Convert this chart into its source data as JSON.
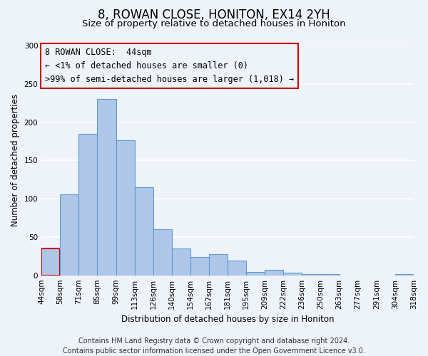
{
  "title": "8, ROWAN CLOSE, HONITON, EX14 2YH",
  "subtitle": "Size of property relative to detached houses in Honiton",
  "xlabel": "Distribution of detached houses by size in Honiton",
  "ylabel": "Number of detached properties",
  "bin_edges": [
    "44sqm",
    "58sqm",
    "71sqm",
    "85sqm",
    "99sqm",
    "113sqm",
    "126sqm",
    "140sqm",
    "154sqm",
    "167sqm",
    "181sqm",
    "195sqm",
    "209sqm",
    "222sqm",
    "236sqm",
    "250sqm",
    "263sqm",
    "277sqm",
    "291sqm",
    "304sqm",
    "318sqm"
  ],
  "bar_values": [
    35,
    106,
    185,
    230,
    176,
    115,
    60,
    35,
    24,
    28,
    19,
    4,
    7,
    3,
    2,
    2,
    0,
    0,
    0,
    2
  ],
  "bar_color": "#aec6e8",
  "bar_edge_color": "#5b9bd5",
  "highlight_bar_index": 0,
  "highlight_bar_edge_color": "#cc0000",
  "annotation_line1": "8 ROWAN CLOSE:  44sqm",
  "annotation_line2": "← <1% of detached houses are smaller (0)",
  "annotation_line3": ">99% of semi-detached houses are larger (1,018) →",
  "annotation_box_edge_color": "#cc0000",
  "ylim": [
    0,
    300
  ],
  "yticks": [
    0,
    50,
    100,
    150,
    200,
    250,
    300
  ],
  "footer_line1": "Contains HM Land Registry data © Crown copyright and database right 2024.",
  "footer_line2": "Contains public sector information licensed under the Open Government Licence v3.0.",
  "background_color": "#eef2f9",
  "grid_color": "#ffffff",
  "title_fontsize": 12,
  "subtitle_fontsize": 9.5,
  "axis_label_fontsize": 8.5,
  "tick_fontsize": 7.5,
  "annotation_fontsize": 8.5,
  "footer_fontsize": 7
}
